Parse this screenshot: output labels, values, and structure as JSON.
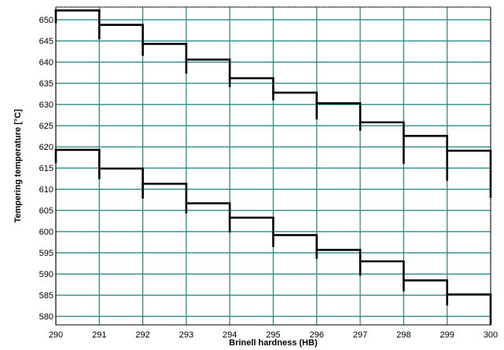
{
  "chart_data": {
    "type": "line",
    "step": true,
    "title": "",
    "xlabel": "Brinell hardness (HB)",
    "ylabel": "Tempering temperature [°C]",
    "xlim": [
      290,
      300
    ],
    "ylim": [
      578,
      653
    ],
    "x_ticks": [
      290,
      291,
      292,
      293,
      294,
      295,
      296,
      297,
      298,
      299,
      300
    ],
    "y_ticks": [
      580,
      585,
      590,
      595,
      600,
      605,
      610,
      615,
      620,
      625,
      630,
      635,
      640,
      645,
      650
    ],
    "grid": true,
    "colors": {
      "grid": "#2e8b8b",
      "line": "#000000"
    },
    "series": [
      {
        "x": [
          290,
          291,
          292,
          293,
          294,
          295,
          296,
          297,
          298,
          299,
          300
        ],
        "y": [
          652.2,
          648.8,
          644.3,
          640.6,
          636.2,
          632.8,
          630.3,
          625.8,
          622.6,
          619.1,
          612
        ],
        "tick_down_to": [
          649.2,
          645.4,
          641.5,
          637.3,
          634.1,
          631.0,
          626.5,
          623.8,
          616.0,
          612.0,
          608.0
        ]
      },
      {
        "x": [
          290,
          291,
          292,
          293,
          294,
          295,
          296,
          297,
          298,
          299,
          300
        ],
        "y": [
          619.3,
          614.9,
          611.3,
          606.7,
          603.3,
          599.2,
          595.7,
          593.0,
          588.5,
          585.2,
          579
        ],
        "tick_down_to": [
          616.2,
          612.4,
          607.8,
          604.3,
          599.8,
          596.4,
          593.6,
          589.6,
          585.9,
          582.6,
          578.0
        ]
      }
    ]
  }
}
